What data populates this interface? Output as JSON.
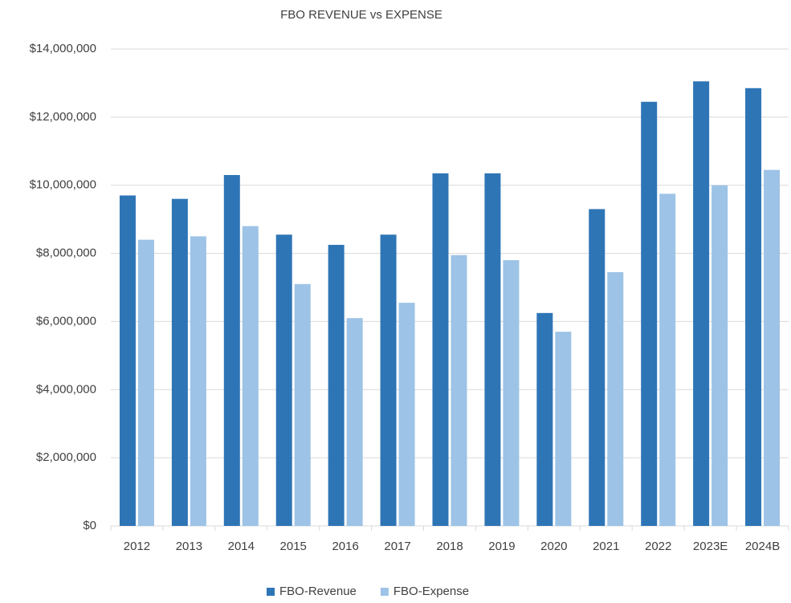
{
  "chart_data": {
    "type": "bar",
    "title": "FBO REVENUE vs EXPENSE",
    "categories": [
      "2012",
      "2013",
      "2014",
      "2015",
      "2016",
      "2017",
      "2018",
      "2019",
      "2020",
      "2021",
      "2022",
      "2023E",
      "2024B"
    ],
    "series": [
      {
        "name": "FBO-Revenue",
        "color": "#2e75b6",
        "values": [
          9700000,
          9600000,
          10300000,
          8550000,
          8250000,
          8550000,
          10350000,
          10350000,
          6250000,
          9300000,
          12450000,
          13050000,
          12850000
        ]
      },
      {
        "name": "FBO-Expense",
        "color": "#9dc3e6",
        "values": [
          8400000,
          8500000,
          8800000,
          7100000,
          6100000,
          6550000,
          7950000,
          7800000,
          5700000,
          7450000,
          9750000,
          10000000,
          10450000
        ]
      }
    ],
    "ylim": [
      0,
      14000000
    ],
    "yticks": [
      {
        "value": 0,
        "label": "$0"
      },
      {
        "value": 2000000,
        "label": "$2,000,000"
      },
      {
        "value": 4000000,
        "label": "$4,000,000"
      },
      {
        "value": 6000000,
        "label": "$6,000,000"
      },
      {
        "value": 8000000,
        "label": "$8,000,000"
      },
      {
        "value": 10000000,
        "label": "$10,000,000"
      },
      {
        "value": 12000000,
        "label": "$12,000,000"
      },
      {
        "value": 14000000,
        "label": "$14,000,000"
      }
    ],
    "grid": true,
    "legend": "bottom"
  }
}
